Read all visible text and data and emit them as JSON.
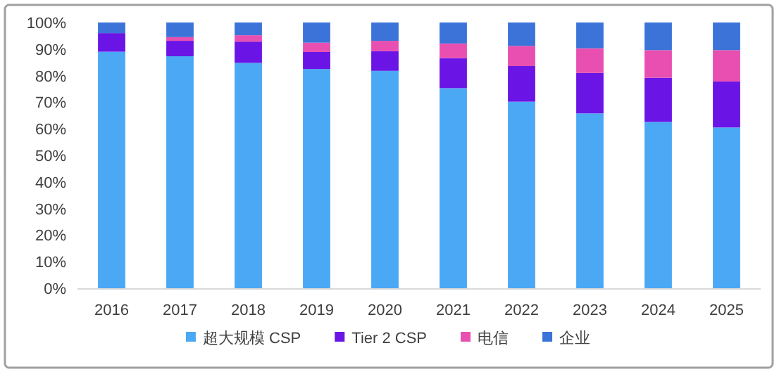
{
  "chart_data": {
    "type": "bar",
    "stacked": true,
    "legend": "bottom",
    "grid": false,
    "categories": [
      "2016",
      "2017",
      "2018",
      "2019",
      "2020",
      "2021",
      "2022",
      "2023",
      "2024",
      "2025"
    ],
    "series": [
      {
        "name": "超大规模 CSP",
        "color": "#4aa8f5",
        "values": [
          89,
          87.3,
          84.8,
          82.5,
          81.8,
          75.3,
          70.2,
          65.8,
          62.6,
          60.5
        ]
      },
      {
        "name": "Tier 2 CSP",
        "color": "#6a14e6",
        "values": [
          7,
          5.8,
          8,
          6.4,
          7.4,
          11.3,
          13.4,
          15.2,
          16.6,
          17.3
        ]
      },
      {
        "name": "电信",
        "color": "#e84fb0",
        "values": [
          0,
          1.4,
          2.4,
          3.5,
          3.9,
          5.5,
          7.6,
          9.3,
          10.4,
          11.8
        ]
      },
      {
        "name": "企业",
        "color": "#3b73d9",
        "values": [
          4,
          5.5,
          4.8,
          7.6,
          6.9,
          7.9,
          8.8,
          9.7,
          10.4,
          10.4
        ]
      }
    ],
    "ylim": [
      0,
      100
    ],
    "yticks": [
      {
        "value": 0,
        "label": "0%"
      },
      {
        "value": 10,
        "label": "10%"
      },
      {
        "value": 20,
        "label": "20%"
      },
      {
        "value": 30,
        "label": "30%"
      },
      {
        "value": 40,
        "label": "40%"
      },
      {
        "value": 50,
        "label": "50%"
      },
      {
        "value": 60,
        "label": "60%"
      },
      {
        "value": 70,
        "label": "70%"
      },
      {
        "value": 80,
        "label": "80%"
      },
      {
        "value": 90,
        "label": "90%"
      },
      {
        "value": 100,
        "label": "100%"
      }
    ]
  }
}
